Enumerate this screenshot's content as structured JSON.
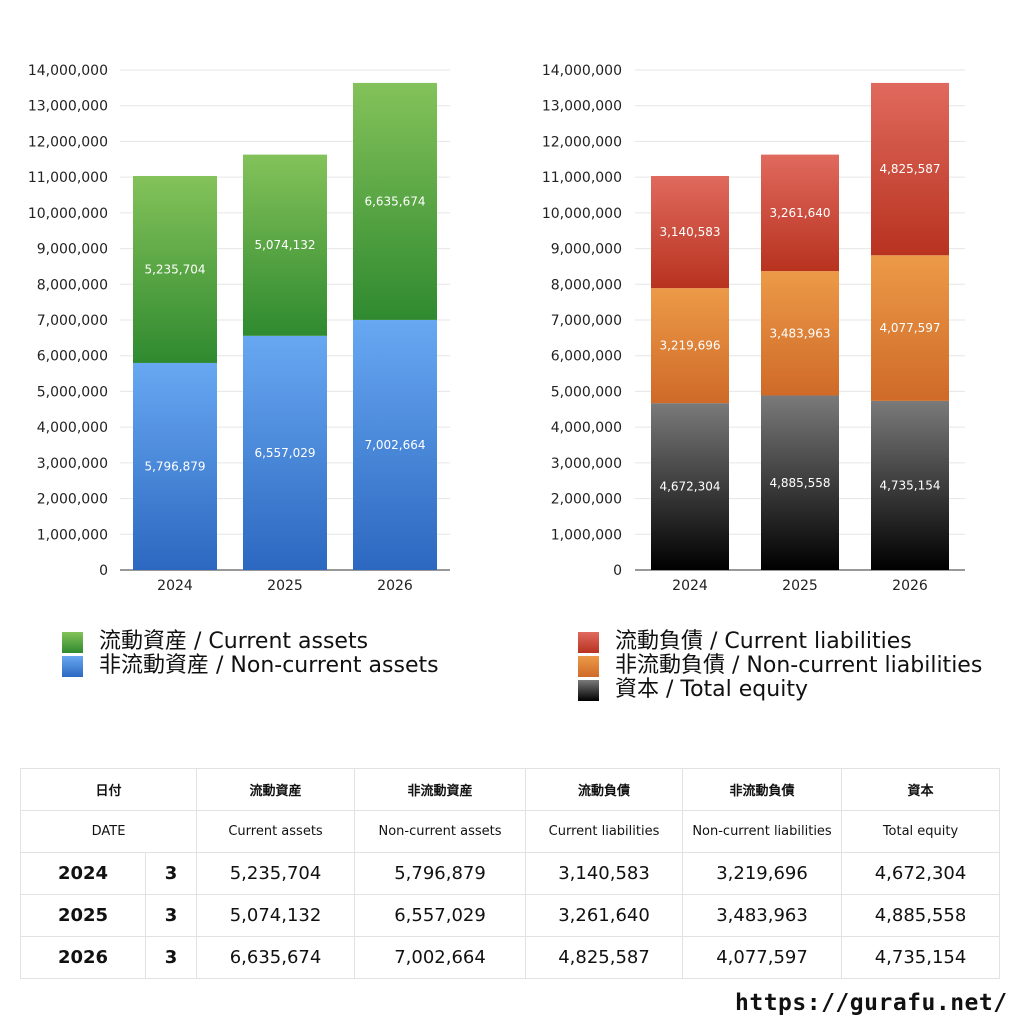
{
  "chart_data": [
    {
      "type": "bar",
      "stacked": true,
      "categories": [
        "2024",
        "2025",
        "2026"
      ],
      "series": [
        {
          "name": "非流動資産 / Non-current assets",
          "values": [
            5796879,
            6557029,
            7002664
          ],
          "color": "#4a90e2"
        },
        {
          "name": "流動資産 / Current assets",
          "values": [
            5235704,
            5074132,
            6635674
          ],
          "color": "#5aa83c"
        }
      ],
      "ylim": [
        0,
        14000000
      ],
      "yticks": [
        0,
        1000000,
        2000000,
        3000000,
        4000000,
        5000000,
        6000000,
        7000000,
        8000000,
        9000000,
        10000000,
        11000000,
        12000000,
        13000000,
        14000000
      ],
      "ytick_labels": [
        "0",
        "1,000,000",
        "2,000,000",
        "3,000,000",
        "4,000,000",
        "5,000,000",
        "6,000,000",
        "7,000,000",
        "8,000,000",
        "9,000,000",
        "10,000,000",
        "11,000,000",
        "12,000,000",
        "13,000,000",
        "14,000,000"
      ],
      "data_labels": [
        [
          "5,796,879",
          "6,557,029",
          "7,002,664"
        ],
        [
          "5,235,704",
          "5,074,132",
          "6,635,674"
        ]
      ],
      "grid": true,
      "legend_position": "bottom"
    },
    {
      "type": "bar",
      "stacked": true,
      "categories": [
        "2024",
        "2025",
        "2026"
      ],
      "series": [
        {
          "name": "資本 / Total equity",
          "values": [
            4672304,
            4885558,
            4735154
          ],
          "color": "#333333"
        },
        {
          "name": "非流動負債 / Non-current liabilities",
          "values": [
            3219696,
            3483963,
            4077597
          ],
          "color": "#e0893a"
        },
        {
          "name": "流動負債 / Current liabilities",
          "values": [
            3140583,
            3261640,
            4825587
          ],
          "color": "#d34a3a"
        }
      ],
      "ylim": [
        0,
        14000000
      ],
      "yticks": [
        0,
        1000000,
        2000000,
        3000000,
        4000000,
        5000000,
        6000000,
        7000000,
        8000000,
        9000000,
        10000000,
        11000000,
        12000000,
        13000000,
        14000000
      ],
      "ytick_labels": [
        "0",
        "1,000,000",
        "2,000,000",
        "3,000,000",
        "4,000,000",
        "5,000,000",
        "6,000,000",
        "7,000,000",
        "8,000,000",
        "9,000,000",
        "10,000,000",
        "11,000,000",
        "12,000,000",
        "13,000,000",
        "14,000,000"
      ],
      "data_labels": [
        [
          "4,672,304",
          "4,885,558",
          "4,735,154"
        ],
        [
          "3,219,696",
          "3,483,963",
          "4,077,597"
        ],
        [
          "3,140,583",
          "3,261,640",
          "4,825,587"
        ]
      ],
      "grid": true,
      "legend_position": "bottom"
    }
  ],
  "legend_left": [
    {
      "label": "流動資産 / Current assets",
      "color": "#5aa83c"
    },
    {
      "label": "非流動資産 / Non-current assets",
      "color": "#4a90e2"
    }
  ],
  "legend_right": [
    {
      "label": "流動負債 / Current liabilities",
      "color": "#d34a3a"
    },
    {
      "label": "非流動負債 / Non-current liabilities",
      "color": "#e0893a"
    },
    {
      "label": "資本 / Total equity",
      "color": "#333333"
    }
  ],
  "table": {
    "header_jp": [
      "日付",
      "流動資産",
      "非流動資産",
      "流動負債",
      "非流動負債",
      "資本"
    ],
    "header_en": [
      "DATE",
      "Current assets",
      "Non-current assets",
      "Current liabilities",
      "Non-current liabilities",
      "Total equity"
    ],
    "rows": [
      {
        "year": "2024",
        "month": "3",
        "values": [
          "5,235,704",
          "5,796,879",
          "3,140,583",
          "3,219,696",
          "4,672,304"
        ]
      },
      {
        "year": "2025",
        "month": "3",
        "values": [
          "5,074,132",
          "6,557,029",
          "3,261,640",
          "3,483,963",
          "4,885,558"
        ]
      },
      {
        "year": "2026",
        "month": "3",
        "values": [
          "6,635,674",
          "7,002,664",
          "4,825,587",
          "4,077,597",
          "4,735,154"
        ]
      }
    ]
  },
  "watermark": "https://gurafu.net/"
}
